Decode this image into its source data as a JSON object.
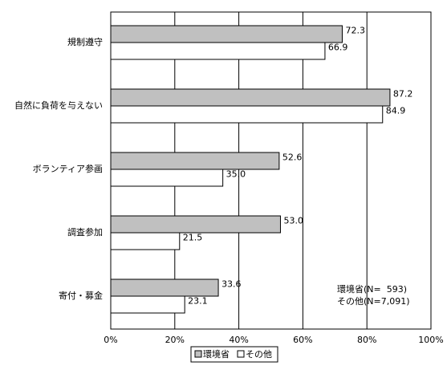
{
  "chart_data": {
    "type": "hbar",
    "categories": [
      "規制遵守",
      "自然に負荷を与えない",
      "ボランティア参画",
      "調査参加",
      "寄付・募金"
    ],
    "series": [
      {
        "name": "環境省",
        "color": "#c0c0c0",
        "values": [
          72.3,
          87.2,
          52.6,
          53.0,
          33.6
        ],
        "value_labels": [
          "72.3",
          "87.2",
          "52.6",
          "53.0",
          "33.6"
        ]
      },
      {
        "name": "その他",
        "color": "#ffffff",
        "values": [
          66.9,
          84.9,
          35.0,
          21.5,
          23.1
        ],
        "value_labels": [
          "66.9",
          "84.9",
          "35.0",
          "21.5",
          "23.1"
        ]
      }
    ],
    "xlim": [
      0,
      100
    ],
    "xticks": [
      {
        "value": 0,
        "label": "0%"
      },
      {
        "value": 20,
        "label": "20%"
      },
      {
        "value": 40,
        "label": "40%"
      },
      {
        "value": 60,
        "label": "60%"
      },
      {
        "value": 80,
        "label": "80%"
      },
      {
        "value": 100,
        "label": "100%"
      }
    ],
    "grid": true,
    "annotations": [
      "環境省(N=  593)",
      "その他(N=7,091)"
    ]
  }
}
